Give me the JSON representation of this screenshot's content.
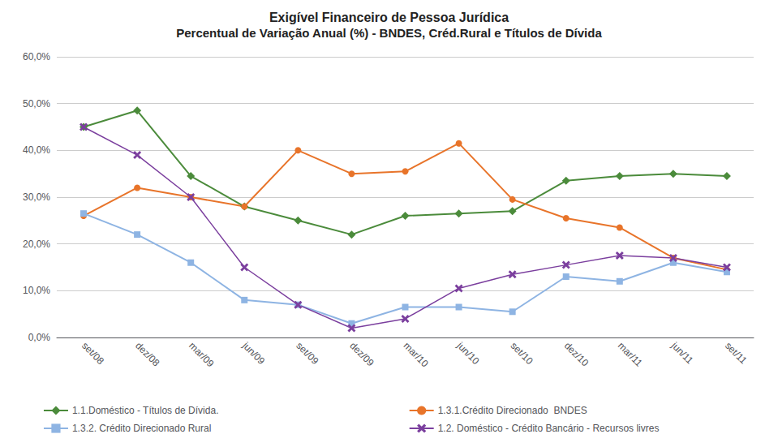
{
  "chart_data": {
    "type": "line",
    "title": "Exigível Financeiro de Pessoa Jurídica",
    "subtitle": "Percentual de Variação Anual (%) - BNDES, Créd.Rural e Títulos de Dívida",
    "categories": [
      "set/08",
      "dez/08",
      "mar/09",
      "jun/09",
      "set/09",
      "dez/09",
      "mar/10",
      "jun/10",
      "set/10",
      "dez/10",
      "mar/11",
      "jun/11",
      "set/11"
    ],
    "series": [
      {
        "name": "1.1.Doméstico - Títulos de Dívida.",
        "color": "#4B8B3B",
        "marker": "diamond",
        "values": [
          45.0,
          48.5,
          34.5,
          28.0,
          25.0,
          22.0,
          26.0,
          26.5,
          27.0,
          33.5,
          34.5,
          35.0,
          34.5
        ]
      },
      {
        "name": "1.3.1.Crédito Direcionado  BNDES",
        "color": "#E8742A",
        "marker": "circle",
        "values": [
          26.0,
          32.0,
          30.0,
          28.0,
          40.0,
          35.0,
          35.5,
          41.5,
          29.5,
          25.5,
          23.5,
          17.0,
          14.5
        ]
      },
      {
        "name": "1.3.2. Crédito Direcionado Rural",
        "color": "#8EB4E3",
        "marker": "square",
        "values": [
          26.5,
          22.0,
          16.0,
          8.0,
          7.0,
          3.0,
          6.5,
          6.5,
          5.5,
          13.0,
          12.0,
          16.0,
          14.0
        ]
      },
      {
        "name": "1.2. Doméstico - Crédito Bancário - Recursos livres",
        "color": "#7B3F9E",
        "marker": "x",
        "values": [
          45.0,
          39.0,
          30.0,
          15.0,
          7.0,
          2.0,
          4.0,
          10.5,
          13.5,
          15.5,
          17.5,
          17.0,
          15.0
        ]
      }
    ],
    "ylim": [
      0.0,
      60.0
    ],
    "yticks": [
      {
        "value": 0.0,
        "label": "0,0%"
      },
      {
        "value": 10.0,
        "label": "10,0%"
      },
      {
        "value": 20.0,
        "label": "20,0%"
      },
      {
        "value": 30.0,
        "label": "30,0%"
      },
      {
        "value": 40.0,
        "label": "40,0%"
      },
      {
        "value": 50.0,
        "label": "50,0%"
      },
      {
        "value": 60.0,
        "label": "60,0%"
      }
    ],
    "grid": true,
    "legend": "bottom"
  }
}
